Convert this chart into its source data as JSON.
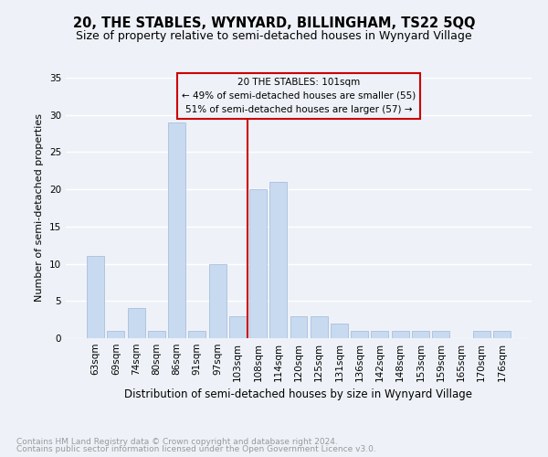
{
  "title": "20, THE STABLES, WYNYARD, BILLINGHAM, TS22 5QQ",
  "subtitle": "Size of property relative to semi-detached houses in Wynyard Village",
  "xlabel": "Distribution of semi-detached houses by size in Wynyard Village",
  "ylabel": "Number of semi-detached properties",
  "footnote1": "Contains HM Land Registry data © Crown copyright and database right 2024.",
  "footnote2": "Contains public sector information licensed under the Open Government Licence v3.0.",
  "categories": [
    "63sqm",
    "69sqm",
    "74sqm",
    "80sqm",
    "86sqm",
    "91sqm",
    "97sqm",
    "103sqm",
    "108sqm",
    "114sqm",
    "120sqm",
    "125sqm",
    "131sqm",
    "136sqm",
    "142sqm",
    "148sqm",
    "153sqm",
    "159sqm",
    "165sqm",
    "170sqm",
    "176sqm"
  ],
  "values": [
    11,
    1,
    4,
    1,
    29,
    1,
    10,
    3,
    20,
    21,
    3,
    3,
    2,
    1,
    1,
    1,
    1,
    1,
    0,
    1,
    1
  ],
  "bar_color": "#c8daf0",
  "bar_edge_color": "#a0b8d8",
  "vline_color": "#cc0000",
  "annotation_line1": "20 THE STABLES: 101sqm",
  "annotation_line2": "← 49% of semi-detached houses are smaller (55)",
  "annotation_line3": "51% of semi-detached houses are larger (57) →",
  "annotation_box_color": "#cc0000",
  "background_color": "#eef2f8",
  "grid_color": "#ffffff",
  "ylim": [
    0,
    35
  ],
  "yticks": [
    0,
    5,
    10,
    15,
    20,
    25,
    30,
    35
  ],
  "title_fontsize": 10.5,
  "subtitle_fontsize": 9,
  "xlabel_fontsize": 8.5,
  "ylabel_fontsize": 8,
  "tick_fontsize": 7.5,
  "footnote_fontsize": 6.5,
  "vline_bar_index": 7
}
